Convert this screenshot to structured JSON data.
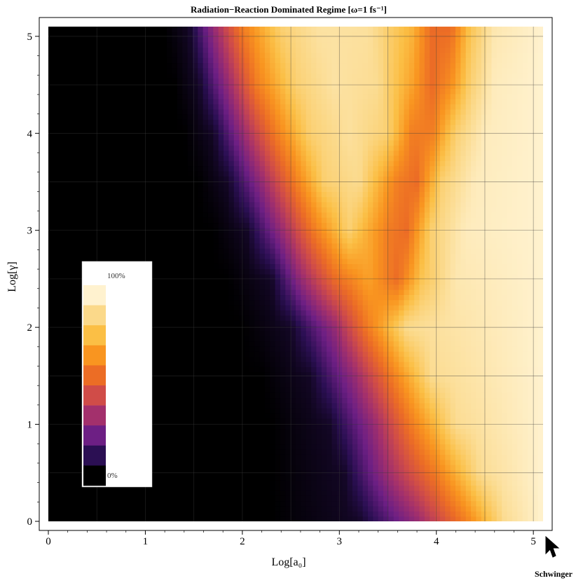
{
  "chart_data": {
    "type": "heatmap",
    "title": "Radiation−Reaction Dominated Regime [ω=1 fs⁻¹]",
    "xlabel": "Log[a₀]",
    "ylabel": "Log[γ]",
    "xlim": [
      0,
      5.1
    ],
    "ylim": [
      0,
      5.1
    ],
    "x_ticks": [
      0,
      1,
      2,
      3,
      4,
      5
    ],
    "y_ticks": [
      0,
      1,
      2,
      3,
      4,
      5
    ],
    "x_tick_labels": [
      "0",
      "1",
      "2",
      "3",
      "4",
      "5"
    ],
    "y_tick_labels": [
      "0",
      "1",
      "2",
      "3",
      "4",
      "5"
    ],
    "grid": true,
    "color_scale": {
      "min_label": "0%",
      "max_label": "100%",
      "colors": [
        "#000000",
        "#2b0f53",
        "#6d1f84",
        "#a3306c",
        "#d04c48",
        "#ec6d25",
        "#f99520",
        "#fbbf45",
        "#fbd98a",
        "#fff2cf"
      ]
    },
    "legend_position": "left",
    "rows": [
      {
        "y": 0.0,
        "cols": [
          [
            0,
            0
          ],
          [
            2.3,
            0
          ],
          [
            3.2,
            0.05
          ],
          [
            3.8,
            0.3
          ],
          [
            4.3,
            0.6
          ],
          [
            4.7,
            0.9
          ],
          [
            5.1,
            1.0
          ]
        ]
      },
      {
        "y": 0.5,
        "cols": [
          [
            0,
            0
          ],
          [
            2.3,
            0
          ],
          [
            3.05,
            0.05
          ],
          [
            3.55,
            0.35
          ],
          [
            4.0,
            0.6
          ],
          [
            4.45,
            0.9
          ],
          [
            5.1,
            1.0
          ]
        ]
      },
      {
        "y": 1.0,
        "cols": [
          [
            0,
            0
          ],
          [
            2.3,
            0
          ],
          [
            2.9,
            0.05
          ],
          [
            3.35,
            0.3
          ],
          [
            3.75,
            0.6
          ],
          [
            4.2,
            0.9
          ],
          [
            5.1,
            1.0
          ]
        ]
      },
      {
        "y": 1.5,
        "cols": [
          [
            0,
            0
          ],
          [
            2.2,
            0
          ],
          [
            2.7,
            0.05
          ],
          [
            3.15,
            0.3
          ],
          [
            3.55,
            0.6
          ],
          [
            3.95,
            0.9
          ],
          [
            5.1,
            1.0
          ]
        ]
      },
      {
        "y": 2.0,
        "cols": [
          [
            0,
            0
          ],
          [
            2.0,
            0
          ],
          [
            2.5,
            0.05
          ],
          [
            2.95,
            0.3
          ],
          [
            3.3,
            0.6
          ],
          [
            3.7,
            0.9
          ],
          [
            5.1,
            1.0
          ]
        ]
      },
      {
        "y": 2.5,
        "cols": [
          [
            0,
            0
          ],
          [
            1.85,
            0
          ],
          [
            2.3,
            0.05
          ],
          [
            2.6,
            0.3
          ],
          [
            2.95,
            0.55
          ],
          [
            3.3,
            0.7
          ],
          [
            3.6,
            0.55
          ],
          [
            3.85,
            0.8
          ],
          [
            4.2,
            0.95
          ],
          [
            5.1,
            1.0
          ]
        ]
      },
      {
        "y": 3.0,
        "cols": [
          [
            0,
            0
          ],
          [
            1.7,
            0
          ],
          [
            2.05,
            0.05
          ],
          [
            2.4,
            0.3
          ],
          [
            2.75,
            0.6
          ],
          [
            3.1,
            0.85
          ],
          [
            3.5,
            0.6
          ],
          [
            3.7,
            0.55
          ],
          [
            3.95,
            0.85
          ],
          [
            4.3,
            0.97
          ],
          [
            5.1,
            1.0
          ]
        ]
      },
      {
        "y": 3.5,
        "cols": [
          [
            0,
            0
          ],
          [
            1.55,
            0
          ],
          [
            1.85,
            0.05
          ],
          [
            2.2,
            0.3
          ],
          [
            2.55,
            0.6
          ],
          [
            2.85,
            0.85
          ],
          [
            3.2,
            0.9
          ],
          [
            3.6,
            0.6
          ],
          [
            3.8,
            0.55
          ],
          [
            4.05,
            0.85
          ],
          [
            4.4,
            0.97
          ],
          [
            5.1,
            1.0
          ]
        ]
      },
      {
        "y": 4.0,
        "cols": [
          [
            0,
            0
          ],
          [
            1.4,
            0
          ],
          [
            1.7,
            0.05
          ],
          [
            2.0,
            0.3
          ],
          [
            2.35,
            0.6
          ],
          [
            2.7,
            0.85
          ],
          [
            3.1,
            0.92
          ],
          [
            3.5,
            0.85
          ],
          [
            3.75,
            0.6
          ],
          [
            3.95,
            0.6
          ],
          [
            4.2,
            0.85
          ],
          [
            4.5,
            0.97
          ],
          [
            5.1,
            1.0
          ]
        ]
      },
      {
        "y": 4.5,
        "cols": [
          [
            0,
            0
          ],
          [
            1.3,
            0
          ],
          [
            1.55,
            0.05
          ],
          [
            1.85,
            0.3
          ],
          [
            2.15,
            0.6
          ],
          [
            2.55,
            0.85
          ],
          [
            2.95,
            0.93
          ],
          [
            3.4,
            0.9
          ],
          [
            3.75,
            0.7
          ],
          [
            3.95,
            0.55
          ],
          [
            4.15,
            0.65
          ],
          [
            4.35,
            0.85
          ],
          [
            4.6,
            0.97
          ],
          [
            5.1,
            1.0
          ]
        ]
      },
      {
        "y": 5.1,
        "cols": [
          [
            0,
            0
          ],
          [
            1.2,
            0
          ],
          [
            1.45,
            0.05
          ],
          [
            1.7,
            0.3
          ],
          [
            2.0,
            0.6
          ],
          [
            2.4,
            0.85
          ],
          [
            2.8,
            0.93
          ],
          [
            3.3,
            0.92
          ],
          [
            3.75,
            0.75
          ],
          [
            3.95,
            0.55
          ],
          [
            4.15,
            0.55
          ],
          [
            4.35,
            0.8
          ],
          [
            4.6,
            0.95
          ],
          [
            5.1,
            1.0
          ]
        ]
      }
    ],
    "annotations": [
      {
        "text": "Schwinger",
        "x": 5.1,
        "y": 0
      }
    ]
  }
}
